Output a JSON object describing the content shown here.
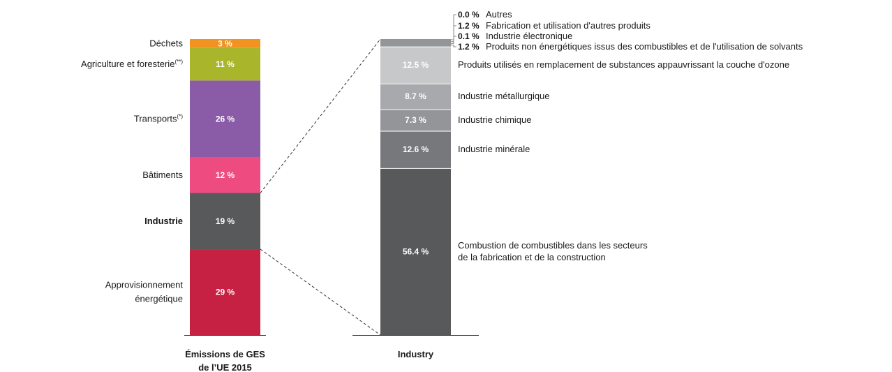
{
  "chart_data": [
    {
      "type": "bar",
      "stacked": true,
      "xlabel": [
        "Émissions de GES",
        "de l’UE 2015"
      ],
      "unit": "%",
      "segments": [
        {
          "label": [
            "Approvisionnement",
            "énergétique"
          ],
          "value": 29,
          "value_label": "29 %",
          "color": "#c62042",
          "bold": false,
          "sup": ""
        },
        {
          "label": [
            "Industrie"
          ],
          "value": 19,
          "value_label": "19 %",
          "color": "#58595b",
          "bold": true,
          "sup": ""
        },
        {
          "label": [
            "Bâtiments"
          ],
          "value": 12,
          "value_label": "12 %",
          "color": "#ee4c80",
          "bold": false,
          "sup": ""
        },
        {
          "label": [
            "Transports"
          ],
          "value": 26,
          "value_label": "26 %",
          "color": "#8a5ca8",
          "bold": false,
          "sup": "(*)"
        },
        {
          "label": [
            "Agriculture et foresterie"
          ],
          "value": 11,
          "value_label": "11 %",
          "color": "#a9b62b",
          "bold": false,
          "sup": "(**)"
        },
        {
          "label": [
            "Déchets"
          ],
          "value": 3,
          "value_label": "3 %",
          "color": "#f29321",
          "bold": false,
          "sup": ""
        }
      ]
    },
    {
      "type": "bar",
      "stacked": true,
      "xlabel": [
        "Industry"
      ],
      "unit": "%",
      "segments": [
        {
          "label": [
            "Combustion de combustibles dans les secteurs",
            "de la fabrication et de la construction"
          ],
          "value": 56.4,
          "value_label": "56.4 %",
          "color": "#58595b"
        },
        {
          "label": [
            "Industrie minérale"
          ],
          "value": 12.6,
          "value_label": "12.6 %",
          "color": "#77787b"
        },
        {
          "label": [
            "Industrie chimique"
          ],
          "value": 7.3,
          "value_label": "7.3 %",
          "color": "#939598"
        },
        {
          "label": [
            "Industrie métallurgique"
          ],
          "value": 8.7,
          "value_label": "8.7 %",
          "color": "#a7a9ac"
        },
        {
          "label": [
            "Produits utilisés en remplacement de substances appauvrissant la couche d'ozone"
          ],
          "value": 12.5,
          "value_label": "12.5 %",
          "color": "#c7c8ca"
        }
      ],
      "small_segments": [
        {
          "label": "Produits non énergétiques issus des combustibles et de l'utilisation de solvants",
          "value": 1.2,
          "value_label": "1.2 %"
        },
        {
          "label": "Industrie électronique",
          "value": 0.1,
          "value_label": "0.1 %"
        },
        {
          "label": "Fabrication et utilisation d'autres produits",
          "value": 1.2,
          "value_label": "1.2 %"
        },
        {
          "label": "Autres",
          "value": 0.0,
          "value_label": "0.0 %"
        }
      ],
      "small_segments_color": "#939598"
    }
  ],
  "colors": {
    "connector": "#333333",
    "baseline": "#333333"
  }
}
